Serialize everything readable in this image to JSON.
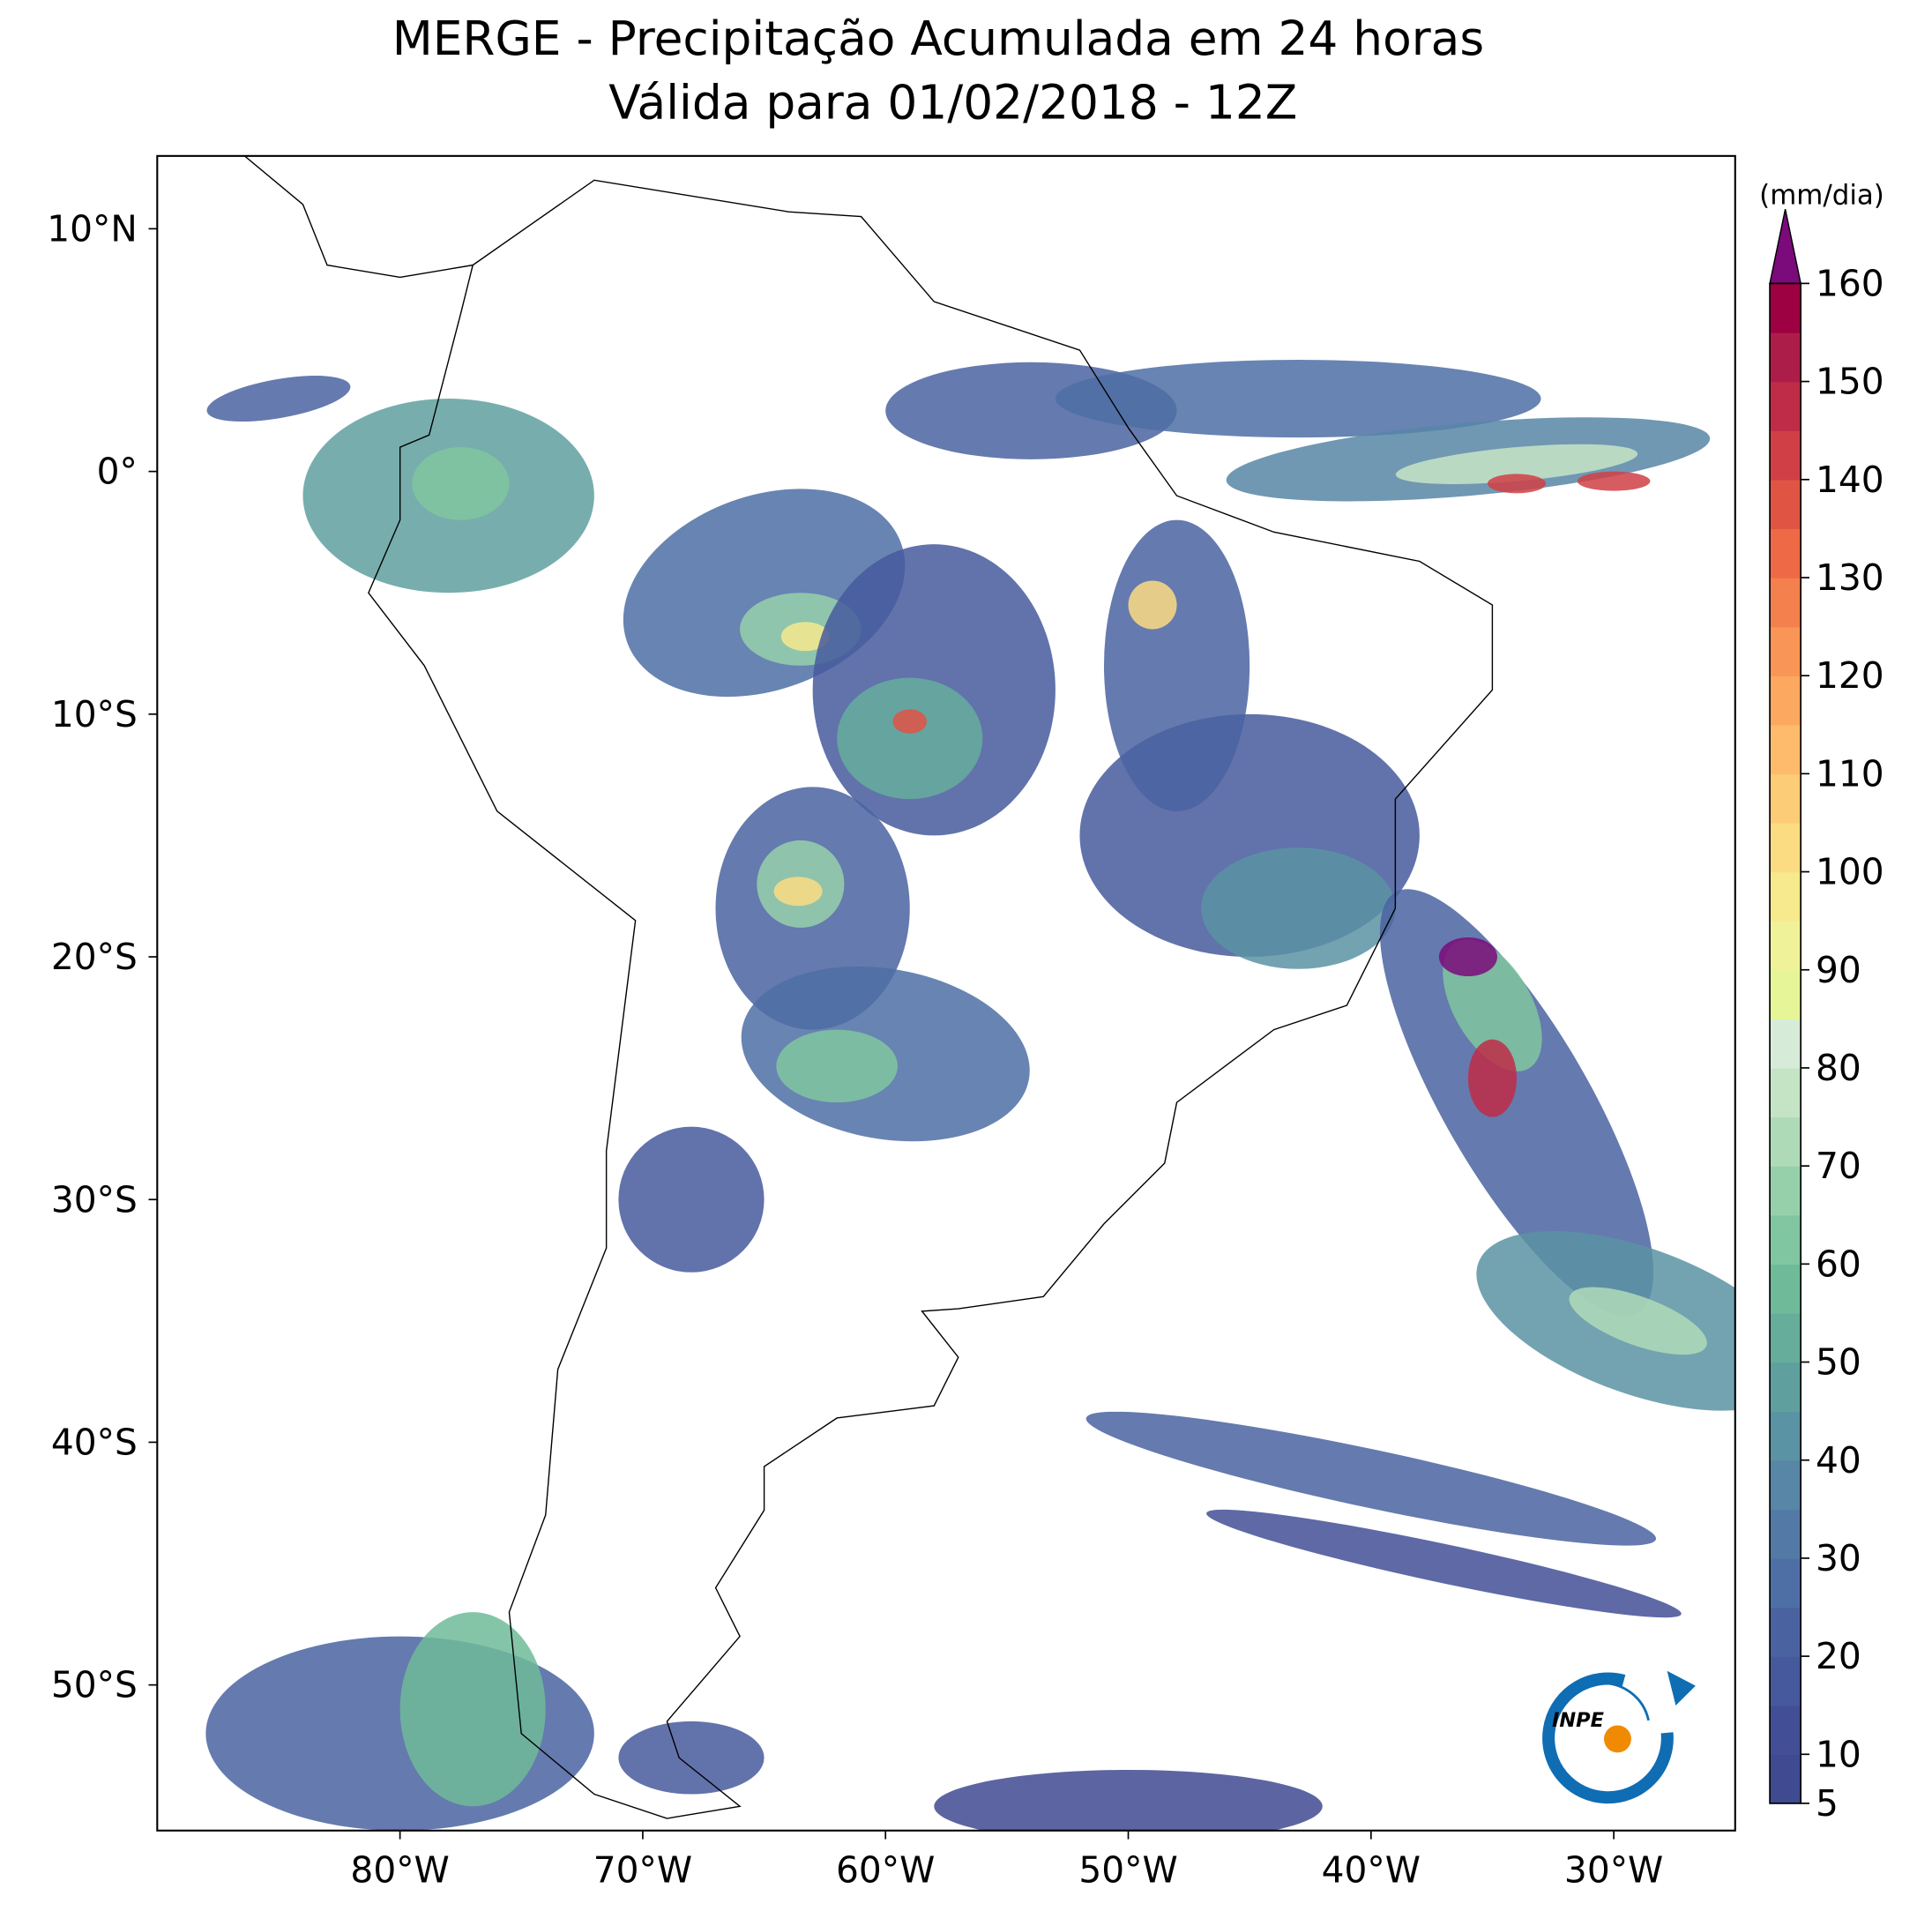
{
  "title": [
    "MERGE - Precipitação Acumulada em 24 horas",
    "Válida para 01/02/2018 - 12Z"
  ],
  "map": {
    "xlim": [
      -90,
      -25
    ],
    "ylim": [
      -56,
      13
    ],
    "xticks": [
      {
        "value": -80,
        "label": "80°W"
      },
      {
        "value": -70,
        "label": "70°W"
      },
      {
        "value": -60,
        "label": "60°W"
      },
      {
        "value": -50,
        "label": "50°W"
      },
      {
        "value": -40,
        "label": "40°W"
      },
      {
        "value": -30,
        "label": "30°W"
      }
    ],
    "yticks": [
      {
        "value": 10,
        "label": "10°N"
      },
      {
        "value": 0,
        "label": "0°"
      },
      {
        "value": -10,
        "label": "10°S"
      },
      {
        "value": -20,
        "label": "20°S"
      },
      {
        "value": -30,
        "label": "30°S"
      },
      {
        "value": -40,
        "label": "40°S"
      },
      {
        "value": -50,
        "label": "50°S"
      }
    ]
  },
  "colorbar": {
    "label": "(mm/dia)",
    "lim": [
      5,
      160
    ],
    "ticks": [
      5,
      10,
      20,
      30,
      40,
      50,
      60,
      70,
      80,
      90,
      100,
      110,
      120,
      130,
      140,
      150,
      160
    ],
    "colors": [
      "#3f4a91",
      "#424f96",
      "#46599c",
      "#4a63a0",
      "#4e6fa5",
      "#537aa6",
      "#5786a6",
      "#5a93a3",
      "#5fa09f",
      "#66ad9c",
      "#6fbb99",
      "#80c6a0",
      "#96d0aa",
      "#afdab8",
      "#c5e4c6",
      "#d6ecd8",
      "#e6f598",
      "#f0f29a",
      "#f6e98e",
      "#fbdc82",
      "#fdcc76",
      "#fdbb6b",
      "#fca861",
      "#f99556",
      "#f4804d",
      "#ee6a46",
      "#e05444",
      "#d03f45",
      "#bf2c48",
      "#ad1d4a",
      "#9e0142"
    ],
    "over_color": "#7b0a7a"
  },
  "logo": "INPE"
}
